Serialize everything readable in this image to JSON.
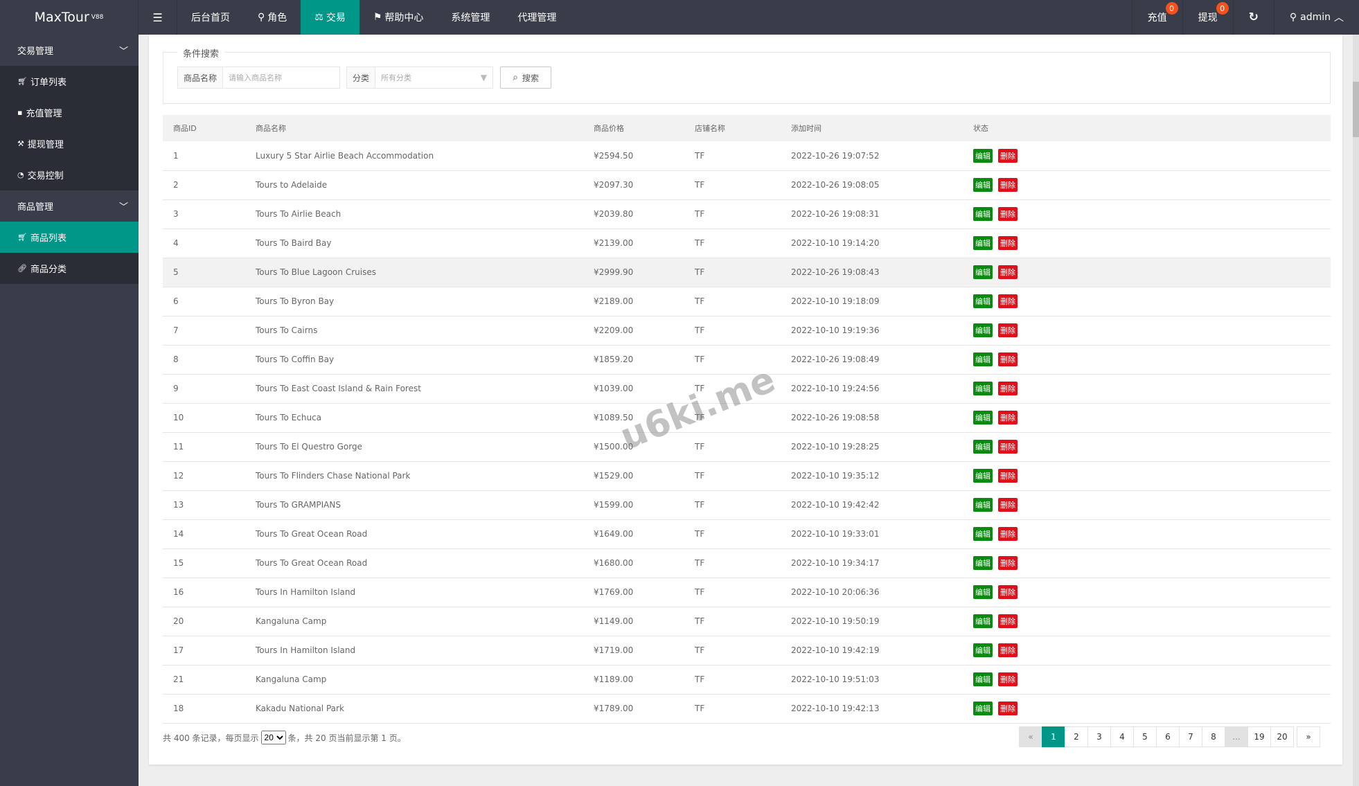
{
  "header": {
    "logo": "MaxTour",
    "logo_version": "V88",
    "nav": [
      {
        "label": "后台首页",
        "icon": ""
      },
      {
        "label": "角色",
        "icon": "user-icon"
      },
      {
        "label": "交易",
        "icon": "scale-icon",
        "active": true
      },
      {
        "label": "帮助中心",
        "icon": "flag-icon"
      },
      {
        "label": "系统管理",
        "icon": ""
      },
      {
        "label": "代理管理",
        "icon": ""
      }
    ],
    "recharge": "充值",
    "recharge_count": "0",
    "withdraw": "提现",
    "withdraw_count": "0",
    "user": "admin"
  },
  "sidebar": {
    "groups": [
      {
        "label": "交易管理",
        "items": [
          {
            "label": "订单列表",
            "icon": "cart-icon"
          },
          {
            "label": "充值管理",
            "icon": "chat-icon"
          },
          {
            "label": "提现管理",
            "icon": "gavel-icon"
          },
          {
            "label": "交易控制",
            "icon": "gauge-icon"
          }
        ]
      },
      {
        "label": "商品管理",
        "items": [
          {
            "label": "商品列表",
            "icon": "cart-icon",
            "active": true
          },
          {
            "label": "商品分类",
            "icon": "link-icon"
          }
        ]
      }
    ]
  },
  "search": {
    "legend": "条件搜索",
    "name_label": "商品名称",
    "name_placeholder": "请输入商品名称",
    "cat_label": "分类",
    "cat_value": "所有分类",
    "button": "搜索"
  },
  "table": {
    "columns": [
      "商品ID",
      "商品名称",
      "商品价格",
      "店铺名称",
      "添加时间",
      "状态"
    ],
    "edit": "编辑",
    "delete": "删除",
    "rows": [
      [
        "1",
        "Luxury 5 Star Airlie Beach Accommodation",
        "¥2594.50",
        "TF",
        "2022-10-26 19:07:52"
      ],
      [
        "2",
        "Tours to Adelaide",
        "¥2097.30",
        "TF",
        "2022-10-26 19:08:05"
      ],
      [
        "3",
        "Tours To Airlie Beach",
        "¥2039.80",
        "TF",
        "2022-10-26 19:08:31"
      ],
      [
        "4",
        "Tours To Baird Bay",
        "¥2139.00",
        "TF",
        "2022-10-10 19:14:20"
      ],
      [
        "5",
        "Tours To Blue Lagoon Cruises",
        "¥2999.90",
        "TF",
        "2022-10-26 19:08:43"
      ],
      [
        "6",
        "Tours To Byron Bay",
        "¥2189.00",
        "TF",
        "2022-10-10 19:18:09"
      ],
      [
        "7",
        "Tours To Cairns",
        "¥2209.00",
        "TF",
        "2022-10-10 19:19:36"
      ],
      [
        "8",
        "Tours To Coffin Bay",
        "¥1859.20",
        "TF",
        "2022-10-26 19:08:49"
      ],
      [
        "9",
        "Tours To East Coast Island & Rain Forest",
        "¥1039.00",
        "TF",
        "2022-10-10 19:24:56"
      ],
      [
        "10",
        "Tours To Echuca",
        "¥1089.50",
        "TF",
        "2022-10-26 19:08:58"
      ],
      [
        "11",
        "Tours To El Questro Gorge",
        "¥1500.00",
        "TF",
        "2022-10-10 19:28:25"
      ],
      [
        "12",
        "Tours To Flinders Chase National Park",
        "¥1529.00",
        "TF",
        "2022-10-10 19:35:12"
      ],
      [
        "13",
        "Tours To GRAMPIANS",
        "¥1599.00",
        "TF",
        "2022-10-10 19:42:42"
      ],
      [
        "14",
        "Tours To Great Ocean Road",
        "¥1649.00",
        "TF",
        "2022-10-10 19:33:01"
      ],
      [
        "15",
        "Tours To Great Ocean Road",
        "¥1680.00",
        "TF",
        "2022-10-10 19:34:17"
      ],
      [
        "16",
        "Tours In Hamilton Island",
        "¥1769.00",
        "TF",
        "2022-10-10 20:06:36"
      ],
      [
        "20",
        "Kangaluna Camp",
        "¥1149.00",
        "TF",
        "2022-10-10 19:50:19"
      ],
      [
        "17",
        "Tours In Hamilton Island",
        "¥1719.00",
        "TF",
        "2022-10-10 19:42:19"
      ],
      [
        "21",
        "Kangaluna Camp",
        "¥1189.00",
        "TF",
        "2022-10-10 19:51:03"
      ],
      [
        "18",
        "Kakadu National Park",
        "¥1789.00",
        "TF",
        "2022-10-10 19:42:13"
      ]
    ]
  },
  "footer": {
    "prefix": "共 400 条记录，每页显示",
    "page_size": "20",
    "suffix": "条，共 20 页当前显示第 1 页。"
  },
  "pagination": {
    "prev": "«",
    "pages": [
      "1",
      "2",
      "3",
      "4",
      "5",
      "6",
      "7",
      "8",
      "...",
      "19",
      "20"
    ],
    "current": "1",
    "next": "»"
  },
  "watermark": "u6ki.me",
  "colors": {
    "accent": "#009688",
    "topbar": "#393d49",
    "edit": "#0a8a10",
    "delete": "#e0101a"
  }
}
